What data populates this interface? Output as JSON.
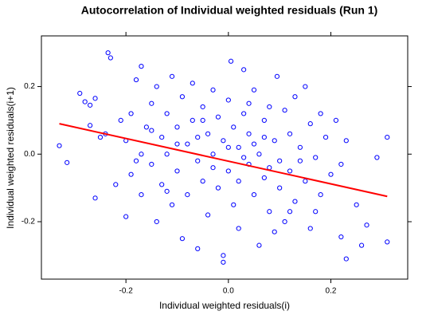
{
  "chart_data": {
    "type": "scatter",
    "title": "Autocorrelation of Individual weighted residuals (Run 1)",
    "x_label": "Individual weighted residuals(i)",
    "y_label": "Individual weighted residuals(i+1)",
    "xlim": [
      -0.365,
      0.35
    ],
    "ylim": [
      -0.37,
      0.35
    ],
    "xticks": [
      -0.2,
      {
        "value": 0,
        "label": "0.0"
      },
      0.2
    ],
    "yticks": [
      -0.2,
      {
        "value": 0,
        "label": "0.0"
      },
      0.2
    ],
    "points": {
      "color": "#0000ff",
      "x": [
        -0.33,
        -0.315,
        -0.29,
        -0.28,
        -0.27,
        -0.27,
        -0.26,
        -0.26,
        -0.235,
        -0.23,
        -0.24,
        -0.22,
        -0.21,
        -0.2,
        -0.2,
        -0.19,
        -0.19,
        -0.18,
        -0.17,
        -0.17,
        -0.17,
        -0.16,
        -0.15,
        -0.15,
        -0.14,
        -0.14,
        -0.13,
        -0.13,
        -0.12,
        -0.12,
        -0.11,
        -0.11,
        -0.1,
        -0.1,
        -0.09,
        -0.09,
        -0.08,
        -0.08,
        -0.07,
        -0.07,
        -0.06,
        -0.06,
        -0.05,
        -0.05,
        -0.04,
        -0.04,
        -0.03,
        -0.03,
        -0.02,
        -0.02,
        -0.01,
        -0.01,
        -0.01,
        0,
        0,
        0.005,
        0.01,
        0.01,
        0.02,
        0.02,
        0.03,
        0.03,
        0.04,
        0.04,
        0.05,
        0.05,
        0.06,
        0.06,
        0.07,
        0.07,
        0.08,
        0.08,
        0.09,
        0.095,
        0.1,
        0.1,
        0.11,
        0.11,
        0.12,
        0.12,
        0.13,
        0.13,
        0.14,
        0.15,
        0.15,
        0.16,
        0.16,
        0.17,
        0.18,
        0.18,
        0.19,
        0.2,
        0.21,
        0.22,
        0.22,
        0.23,
        0.23,
        0.25,
        0.26,
        0.27,
        0.29,
        0.31,
        0.31,
        -0.25,
        -0.18,
        -0.12,
        -0.06,
        0,
        0.02,
        0.05,
        0.08,
        0.14,
        0.03,
        -0.03,
        0.07,
        -0.1,
        0.12,
        0.09,
        -0.15,
        0.17,
        -0.05,
        0.04
      ],
      "y": [
        0.025,
        -0.025,
        0.18,
        0.155,
        0.145,
        0.085,
        0.165,
        -0.13,
        0.3,
        0.285,
        0.06,
        -0.09,
        0.1,
        0.04,
        -0.185,
        0.12,
        -0.06,
        0.22,
        0.26,
        0,
        -0.12,
        0.08,
        0.15,
        -0.03,
        0.2,
        -0.2,
        0.05,
        -0.09,
        0.12,
        0,
        0.23,
        -0.15,
        0.08,
        -0.05,
        0.17,
        -0.25,
        0.03,
        -0.12,
        0.21,
        0.1,
        -0.02,
        -0.28,
        0.14,
        -0.08,
        0.06,
        -0.18,
        0.19,
        0,
        0.11,
        -0.1,
        -0.32,
        -0.3,
        0.04,
        0.16,
        -0.05,
        0.275,
        0.08,
        -0.15,
        0.02,
        -0.22,
        0.25,
        0.12,
        -0.03,
        0.06,
        -0.12,
        0.19,
        0,
        -0.27,
        0.1,
        -0.07,
        0.14,
        -0.17,
        0.04,
        0.23,
        -0.02,
        -0.1,
        0.13,
        -0.2,
        0.06,
        -0.05,
        0.17,
        -0.14,
        0.02,
        0.2,
        -0.08,
        0.09,
        -0.22,
        -0.01,
        0.12,
        -0.12,
        0.05,
        -0.06,
        0.1,
        -0.245,
        -0.03,
        -0.31,
        0.04,
        -0.15,
        -0.27,
        -0.21,
        -0.01,
        0.05,
        -0.26,
        0.05,
        -0.02,
        -0.11,
        0.05,
        0.02,
        -0.08,
        0.03,
        -0.04,
        -0.02,
        -0.01,
        -0.04,
        0.05,
        0.03,
        -0.17,
        -0.23,
        0.07,
        -0.17,
        0.1,
        0.15
      ]
    },
    "fit": {
      "color": "#ff0000",
      "x": [
        -0.33,
        0.31
      ],
      "y": [
        0.09,
        -0.125
      ]
    }
  }
}
